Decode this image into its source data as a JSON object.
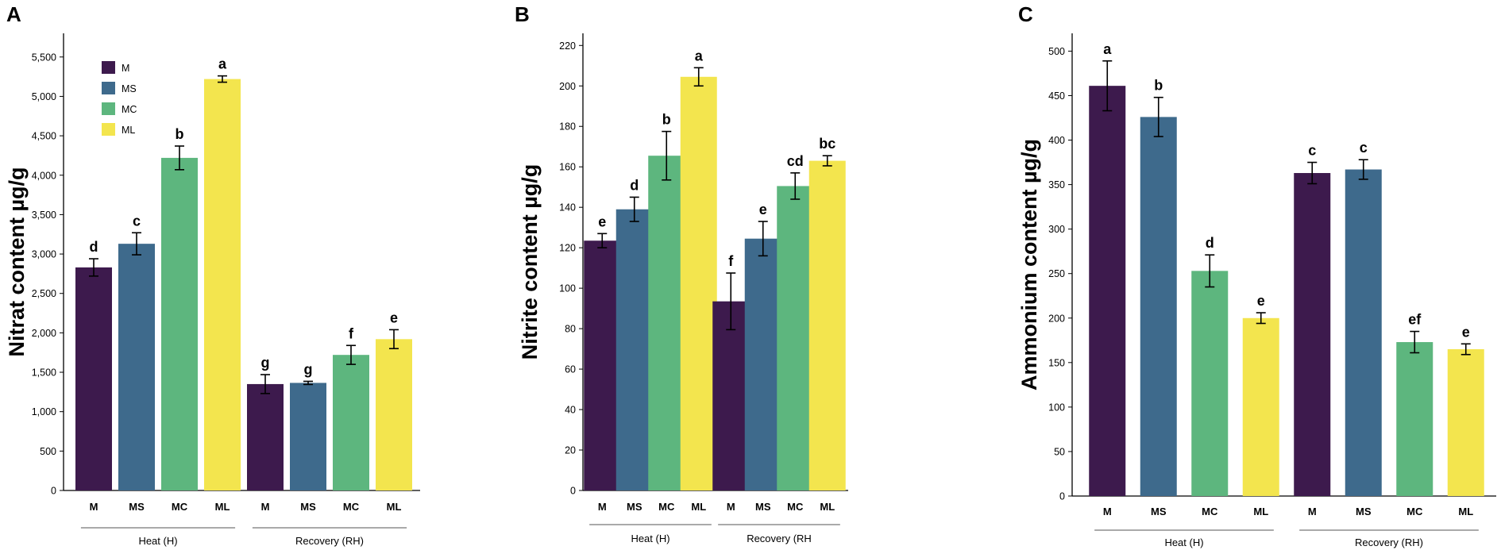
{
  "colors": {
    "M": "#3d1a4d",
    "MS": "#3e6a8c",
    "MC": "#5db67e",
    "ML": "#f3e54e"
  },
  "chart_data": [
    {
      "type": "bar",
      "panel": "A",
      "ylabel": "Nitrat  content µg/g",
      "ylim": [
        0,
        5800
      ],
      "yticks": [
        0,
        500,
        1000,
        1500,
        2000,
        2500,
        3000,
        3500,
        4000,
        4500,
        5000,
        5500
      ],
      "ytick_labels": [
        "0",
        "500",
        "1,000",
        "1,500",
        "2,000",
        "2,500",
        "3,000",
        "3,500",
        "4,000",
        "4,500",
        "5,000",
        "5,500"
      ],
      "categories": [
        "M",
        "MS",
        "MC",
        "ML",
        "M",
        "MS",
        "MC",
        "ML"
      ],
      "groups": [
        {
          "label": "Heat (H)",
          "start": 0,
          "end": 3
        },
        {
          "label": "Recovery (RH)",
          "start": 4,
          "end": 7
        }
      ],
      "values": [
        2830,
        3130,
        4220,
        5220,
        1350,
        1365,
        1720,
        1920
      ],
      "errors": [
        110,
        140,
        150,
        40,
        120,
        20,
        120,
        120
      ],
      "letters": [
        "d",
        "c",
        "b",
        "a",
        "g",
        "g",
        "f",
        "e"
      ],
      "legend": [
        "M",
        "MS",
        "MC",
        "ML"
      ]
    },
    {
      "type": "bar",
      "panel": "B",
      "ylabel": "Nitrite content µg/g",
      "ylim": [
        0,
        226
      ],
      "yticks": [
        0,
        20,
        40,
        60,
        80,
        100,
        120,
        140,
        160,
        180,
        200,
        220
      ],
      "ytick_labels": [
        "0",
        "20",
        "40",
        "60",
        "80",
        "100",
        "120",
        "140",
        "160",
        "180",
        "200",
        "220"
      ],
      "categories": [
        "M",
        "MS",
        "MC",
        "ML",
        "M",
        "MS",
        "MC",
        "ML"
      ],
      "groups": [
        {
          "label": "Heat (H)",
          "start": 0,
          "end": 3
        },
        {
          "label": "Recovery (RH",
          "start": 4,
          "end": 7
        }
      ],
      "values": [
        123.5,
        139,
        165.5,
        204.5,
        93.5,
        124.5,
        150.5,
        163
      ],
      "errors": [
        3.5,
        6,
        12,
        4.5,
        14,
        8.5,
        6.5,
        2.5
      ],
      "letters": [
        "e",
        "d",
        "b",
        "a",
        "f",
        "e",
        "cd",
        "bc"
      ]
    },
    {
      "type": "bar",
      "panel": "C",
      "ylabel": "Ammonium content µg/g",
      "ylim": [
        0,
        520
      ],
      "yticks": [
        0,
        50,
        100,
        150,
        200,
        250,
        300,
        350,
        400,
        450,
        500
      ],
      "ytick_labels": [
        "0",
        "50",
        "100",
        "150",
        "200",
        "250",
        "300",
        "350",
        "400",
        "450",
        "500"
      ],
      "categories": [
        "M",
        "MS",
        "MC",
        "ML",
        "M",
        "MS",
        "MC",
        "ML"
      ],
      "groups": [
        {
          "label": "Heat (H)",
          "start": 0,
          "end": 3
        },
        {
          "label": "Recovery (RH)",
          "start": 4,
          "end": 7
        }
      ],
      "values": [
        461,
        426,
        253,
        200,
        363,
        367,
        173,
        165
      ],
      "errors": [
        28,
        22,
        18,
        6,
        12,
        11,
        12,
        6
      ],
      "letters": [
        "a",
        "b",
        "d",
        "e",
        "c",
        "c",
        "ef",
        "e"
      ]
    }
  ]
}
